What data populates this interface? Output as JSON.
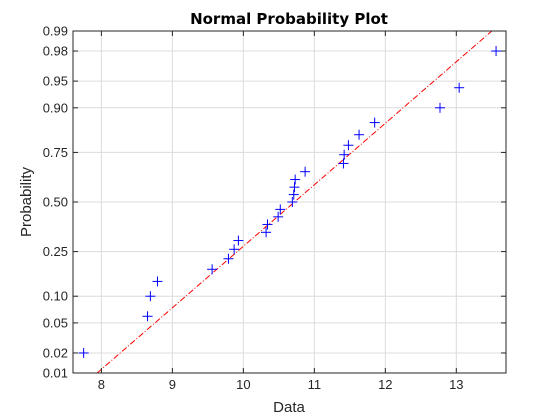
{
  "chart_data": {
    "type": "scatter",
    "title": "Normal Probability Plot",
    "xlabel": "Data",
    "ylabel": "Probability",
    "xlim": [
      7.6,
      13.7
    ],
    "x_ticks": [
      8,
      9,
      10,
      11,
      12,
      13
    ],
    "y_scale": "normal-probability",
    "y_ticks": [
      0.01,
      0.02,
      0.05,
      0.1,
      0.25,
      0.5,
      0.75,
      0.9,
      0.95,
      0.98,
      0.99
    ],
    "y_tick_labels": [
      "0.01",
      "0.02",
      "0.05",
      "0.10",
      "0.25",
      "0.50",
      "0.75",
      "0.90",
      "0.95",
      "0.98",
      "0.99"
    ],
    "grid": true,
    "marker": "+",
    "colors": {
      "points": "#0000ff",
      "reference_line": "#ff0000",
      "grid": "#dcdcdc",
      "axes": "#262626"
    },
    "series": [
      {
        "values": [
          {
            "x": 7.75,
            "y": 0.02
          },
          {
            "x": 8.65,
            "y": 0.06
          },
          {
            "x": 8.69,
            "y": 0.1
          },
          {
            "x": 8.79,
            "y": 0.14
          },
          {
            "x": 9.56,
            "y": 0.18
          },
          {
            "x": 9.79,
            "y": 0.22
          },
          {
            "x": 9.87,
            "y": 0.26
          },
          {
            "x": 9.93,
            "y": 0.3
          },
          {
            "x": 10.32,
            "y": 0.34
          },
          {
            "x": 10.34,
            "y": 0.38
          },
          {
            "x": 10.49,
            "y": 0.42
          },
          {
            "x": 10.52,
            "y": 0.46
          },
          {
            "x": 10.69,
            "y": 0.5
          },
          {
            "x": 10.71,
            "y": 0.54
          },
          {
            "x": 10.72,
            "y": 0.58
          },
          {
            "x": 10.73,
            "y": 0.62
          },
          {
            "x": 10.87,
            "y": 0.66
          },
          {
            "x": 11.41,
            "y": 0.7
          },
          {
            "x": 11.42,
            "y": 0.74
          },
          {
            "x": 11.48,
            "y": 0.78
          },
          {
            "x": 11.63,
            "y": 0.82
          },
          {
            "x": 11.85,
            "y": 0.86
          },
          {
            "x": 12.77,
            "y": 0.9
          },
          {
            "x": 13.04,
            "y": 0.94
          },
          {
            "x": 13.56,
            "y": 0.98
          }
        ]
      }
    ],
    "reference_line": {
      "style": "dash-dot",
      "points": [
        {
          "x": 7.94,
          "y": 0.01
        },
        {
          "x": 13.5,
          "y": 0.99
        }
      ]
    }
  }
}
